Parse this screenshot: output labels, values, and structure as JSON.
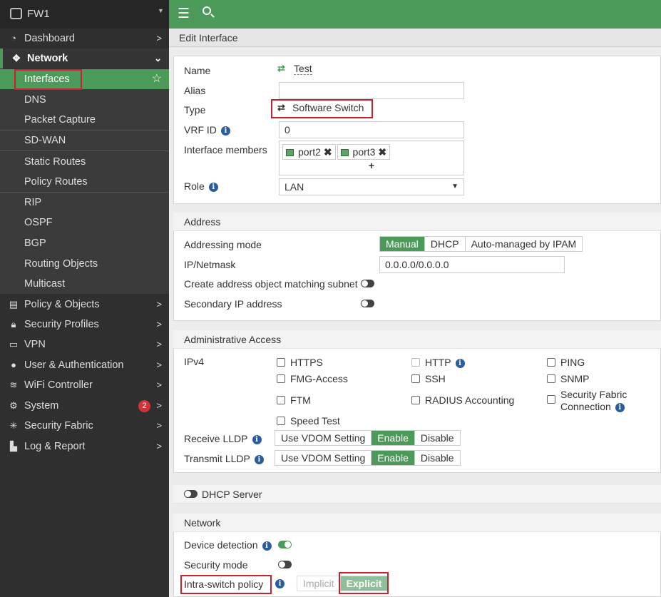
{
  "sidebar": {
    "device": "FW1",
    "items": [
      {
        "label": "Dashboard",
        "icon": "dashboard-icon"
      },
      {
        "label": "Network",
        "icon": "move-arrows-icon"
      },
      {
        "label": "Interfaces"
      },
      {
        "label": "DNS"
      },
      {
        "label": "Packet Capture"
      },
      {
        "label": "SD-WAN"
      },
      {
        "label": "Static Routes"
      },
      {
        "label": "Policy Routes"
      },
      {
        "label": "RIP"
      },
      {
        "label": "OSPF"
      },
      {
        "label": "BGP"
      },
      {
        "label": "Routing Objects"
      },
      {
        "label": "Multicast"
      },
      {
        "label": "Policy & Objects",
        "icon": "clipboard-icon"
      },
      {
        "label": "Security Profiles",
        "icon": "lock-icon"
      },
      {
        "label": "VPN",
        "icon": "laptop-icon"
      },
      {
        "label": "User & Authentication",
        "icon": "user-icon"
      },
      {
        "label": "WiFi Controller",
        "icon": "wifi-icon"
      },
      {
        "label": "System",
        "icon": "gear-icon",
        "badge": "2"
      },
      {
        "label": "Security Fabric",
        "icon": "fabric-icon"
      },
      {
        "label": "Log & Report",
        "icon": "chart-icon"
      }
    ]
  },
  "header": {
    "title": "Edit Interface"
  },
  "form": {
    "name_label": "Name",
    "name_value": "Test",
    "alias_label": "Alias",
    "alias_value": "",
    "type_label": "Type",
    "type_value": "Software Switch",
    "vrf_label": "VRF ID",
    "vrf_value": "0",
    "members_label": "Interface members",
    "members": [
      "port2",
      "port3"
    ],
    "add": "+",
    "role_label": "Role",
    "role_value": "LAN"
  },
  "address": {
    "title": "Address",
    "mode_label": "Addressing mode",
    "modes": [
      "Manual",
      "DHCP",
      "Auto-managed by IPAM"
    ],
    "mode_selected": "Manual",
    "ip_label": "IP/Netmask",
    "ip_value": "0.0.0.0/0.0.0.0",
    "create_obj_label": "Create address object matching subnet",
    "create_obj_on": false,
    "secondary_label": "Secondary IP address",
    "secondary_on": false
  },
  "admin": {
    "title": "Administrative Access",
    "ipv4_label": "IPv4",
    "options": [
      "HTTPS",
      "HTTP",
      "PING",
      "FMG-Access",
      "SSH",
      "SNMP",
      "FTM",
      "RADIUS Accounting",
      "Security Fabric",
      "Connection",
      "Speed Test"
    ],
    "receive_label": "Receive LLDP",
    "transmit_label": "Transmit LLDP",
    "lldp_options": [
      "Use VDOM Setting",
      "Enable",
      "Disable"
    ],
    "receive_selected": "Enable",
    "transmit_selected": "Enable"
  },
  "dhcp": {
    "label": "DHCP Server",
    "on": false
  },
  "network": {
    "title": "Network",
    "device_detection_label": "Device detection",
    "device_detection_on": true,
    "security_mode_label": "Security mode",
    "security_mode_on": false,
    "intra_label": "Intra-switch policy",
    "intra_options": [
      "Implicit",
      "Explicit"
    ],
    "intra_selected": "Explicit"
  },
  "colors": {
    "accent": "#4c9a5a",
    "highlight": "#c8232c",
    "sidebar": "#2f2f2f"
  }
}
